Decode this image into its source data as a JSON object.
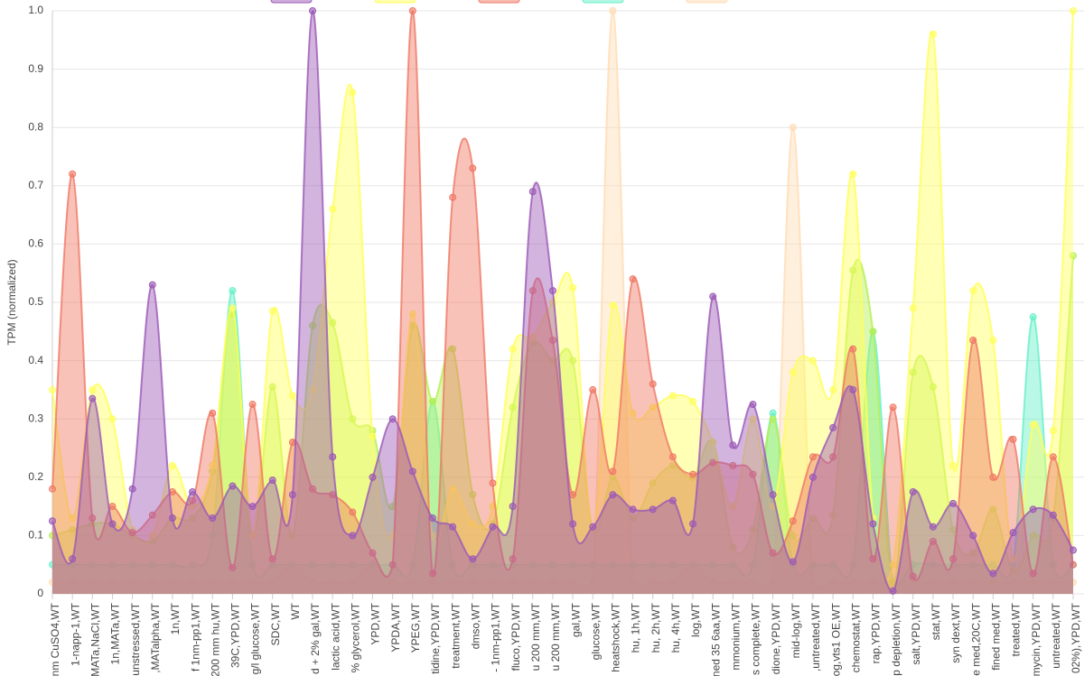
{
  "chart_data": {
    "type": "area",
    "y_label": "TPM (normalized)",
    "categories": [
      "nm CuSO4,WT",
      "1-napp-1,WT",
      "MATa,NaCl,WT",
      "1n,MATa,WT",
      "unstressed,WT",
      ",MATalpha,WT",
      "1n,WT",
      "f 1nm-pp1,WT",
      "200 mm hu,WT",
      "39C,YPD,WT",
      "g/l glucose,WT",
      "SDC,WT",
      "WT",
      "d + 2% gal,WT",
      "lactic acid,WT",
      "% glycerol,WT",
      "YPD,WT",
      "YPDA,WT",
      "YPEG,WT",
      "tidine,YPD,WT",
      "treatment,WT",
      "dmso,WT",
      "- 1nm-pp1,WT",
      "fluco,YPD,WT",
      "u 200 mm,WT",
      "u 200 mm,WT",
      "gal,WT",
      "glucose,WT",
      "heatshock,WT",
      "hu, 1h,WT",
      "hu, 2h,WT",
      "hu, 4h,WT",
      "log,WT",
      "ned 35 6aa,WT",
      "mmonium,WT",
      "s complete,WT",
      "dione,YPD,WT",
      "mid-log,WT",
      ",untreated,WT",
      "og,vts1 OE,WT",
      "chemostat,WT",
      "rap,YPD,WT",
      "p depletion,WT",
      "salt,YPD,WT",
      "stat,WT",
      "syn dext,WT",
      "e med,20C,WT",
      "fined med,WT",
      "treated,WT",
      "mycin,YPD,WT",
      "untreated,WT",
      "02%),YPD,WT"
    ],
    "series": [
      {
        "color": "#ffdcb4",
        "values": [
          0.02,
          0.02,
          0.02,
          0.02,
          0.02,
          0.02,
          0.02,
          0.02,
          0.02,
          0.02,
          0.02,
          0.02,
          0.05,
          0.02,
          0.02,
          0.02,
          0.05,
          0.02,
          0.02,
          0.02,
          0.02,
          0.02,
          0.02,
          0.02,
          0.02,
          0.02,
          0.02,
          0.02,
          1.0,
          0.02,
          0.02,
          0.02,
          0.05,
          0.02,
          0.02,
          0.02,
          0.02,
          0.8,
          0.02,
          0.02,
          0.02,
          0.02,
          0.02,
          0.02,
          0.02,
          0.02,
          0.02,
          0.02,
          0.02,
          0.02,
          0.02,
          0.02
        ]
      },
      {
        "color": "#66f0c8",
        "values": [
          0.05,
          0.05,
          0.05,
          0.05,
          0.05,
          0.05,
          0.05,
          0.05,
          0.1,
          0.52,
          0.05,
          0.05,
          0.05,
          0.05,
          0.05,
          0.05,
          0.05,
          0.05,
          0.05,
          0.33,
          0.05,
          0.05,
          0.05,
          0.05,
          0.05,
          0.05,
          0.05,
          0.05,
          0.05,
          0.05,
          0.05,
          0.05,
          0.05,
          0.05,
          0.05,
          0.05,
          0.31,
          0.05,
          0.05,
          0.05,
          0.05,
          0.45,
          0.02,
          0.05,
          0.05,
          0.05,
          0.05,
          0.05,
          0.05,
          0.475,
          0.05,
          0.05
        ]
      },
      {
        "color": "#b4f050",
        "values": [
          0.1,
          0.11,
          0.12,
          0.12,
          0.1,
          0.09,
          0.13,
          0.13,
          0.21,
          0.48,
          0.1,
          0.355,
          0.1,
          0.46,
          0.465,
          0.3,
          0.28,
          0.15,
          0.46,
          0.33,
          0.42,
          0.17,
          0.12,
          0.32,
          0.43,
          0.4,
          0.4,
          0.11,
          0.2,
          0.13,
          0.19,
          0.22,
          0.2,
          0.26,
          0.08,
          0.11,
          0.3,
          0.1,
          0.13,
          0.135,
          0.555,
          0.45,
          0.02,
          0.38,
          0.355,
          0.11,
          0.07,
          0.145,
          0.04,
          0.1,
          0.13,
          0.58
        ]
      },
      {
        "color": "#ffff5a",
        "values": [
          0.35,
          0.13,
          0.35,
          0.3,
          0.11,
          0.1,
          0.22,
          0.15,
          0.22,
          0.49,
          0.1,
          0.485,
          0.34,
          0.35,
          0.66,
          0.86,
          0.27,
          0.1,
          0.48,
          0.1,
          0.18,
          0.12,
          0.15,
          0.42,
          0.44,
          0.5,
          0.525,
          0.11,
          0.495,
          0.31,
          0.32,
          0.34,
          0.33,
          0.26,
          0.15,
          0.3,
          0.15,
          0.38,
          0.4,
          0.35,
          0.72,
          0.13,
          0.05,
          0.49,
          0.96,
          0.22,
          0.52,
          0.435,
          0.06,
          0.29,
          0.28,
          1.0
        ]
      },
      {
        "color": "#f07864",
        "values": [
          0.18,
          0.72,
          0.13,
          0.15,
          0.105,
          0.135,
          0.175,
          0.16,
          0.31,
          0.045,
          0.325,
          0.06,
          0.26,
          0.18,
          0.17,
          0.14,
          0.07,
          0.05,
          1.0,
          0.035,
          0.68,
          0.73,
          0.19,
          0.06,
          0.52,
          0.435,
          0.17,
          0.35,
          0.21,
          0.54,
          0.36,
          0.235,
          0.205,
          0.225,
          0.22,
          0.205,
          0.07,
          0.125,
          0.235,
          0.235,
          0.42,
          0.06,
          0.32,
          0.03,
          0.09,
          0.06,
          0.435,
          0.2,
          0.265,
          0.035,
          0.235,
          0.05
        ]
      },
      {
        "color": "#9b59b6",
        "values": [
          0.125,
          0.06,
          0.335,
          0.12,
          0.18,
          0.53,
          0.13,
          0.175,
          0.13,
          0.185,
          0.15,
          0.195,
          0.17,
          1.0,
          0.235,
          0.1,
          0.2,
          0.3,
          0.21,
          0.13,
          0.115,
          0.06,
          0.115,
          0.15,
          0.69,
          0.52,
          0.12,
          0.115,
          0.17,
          0.145,
          0.145,
          0.16,
          0.12,
          0.51,
          0.255,
          0.325,
          0.17,
          0.055,
          0.2,
          0.285,
          0.35,
          0.12,
          0.005,
          0.175,
          0.115,
          0.155,
          0.1,
          0.035,
          0.105,
          0.145,
          0.135,
          0.075
        ]
      }
    ],
    "ylim": [
      0,
      1
    ],
    "yticks": [
      0,
      0.1,
      0.2,
      0.3,
      0.4,
      0.5,
      0.6,
      0.7,
      0.8,
      0.9,
      {
        "value": 1,
        "label": "1.0"
      }
    ],
    "grid": true,
    "legend": "top"
  }
}
